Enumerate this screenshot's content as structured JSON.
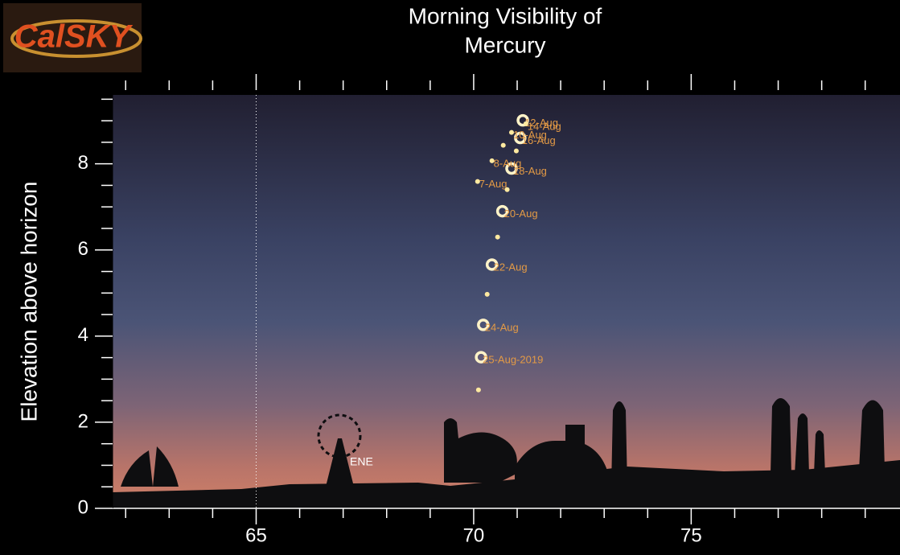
{
  "chart_data": {
    "type": "scatter",
    "logo": "CalSKY",
    "title": [
      "Morning  Visibility of",
      "Mercury"
    ],
    "y_label": "Elevation above horizon",
    "direction_label": "ENE",
    "xlim": [
      61.7,
      79.8
    ],
    "ylim": [
      0,
      9.6
    ],
    "xticks": [
      65,
      70,
      75
    ],
    "yticks": [
      0,
      2,
      4,
      6,
      8
    ],
    "xminor": [
      62,
      63,
      64,
      66,
      67,
      68,
      69,
      71,
      72,
      73,
      74,
      76,
      77,
      78,
      79
    ],
    "yminor": [
      0.5,
      1,
      1.5,
      2.5,
      3,
      3.5,
      4.5,
      5,
      5.5,
      6.5,
      7,
      7.5,
      8.5,
      9,
      9.5
    ],
    "vline": 65,
    "points_large": {
      "color": "#fff3c8",
      "x": [
        71.13,
        71.07,
        70.87,
        70.66,
        70.42,
        70.22,
        70.17
      ],
      "y": [
        9.01,
        8.6,
        7.89,
        6.9,
        5.66,
        4.26,
        3.51
      ],
      "labels": [
        "12-Aug",
        "16-Aug",
        "18-Aug",
        "20-Aug",
        "22-Aug",
        "24-Aug",
        "25-Aug-2019"
      ]
    },
    "points_small": {
      "color": "#ffe9a0",
      "x": [
        70.09,
        70.42,
        70.68,
        70.87,
        71.2,
        70.98,
        70.77,
        70.55,
        70.31,
        70.11
      ],
      "y": [
        7.59,
        8.07,
        8.43,
        8.73,
        8.93,
        8.3,
        7.4,
        6.3,
        4.97,
        2.75
      ],
      "labels": [
        "7-Aug",
        "8-Aug",
        null,
        "10-Aug",
        "14-Aug",
        null,
        null,
        null,
        null,
        null
      ]
    },
    "label_color": "#e39a45"
  }
}
